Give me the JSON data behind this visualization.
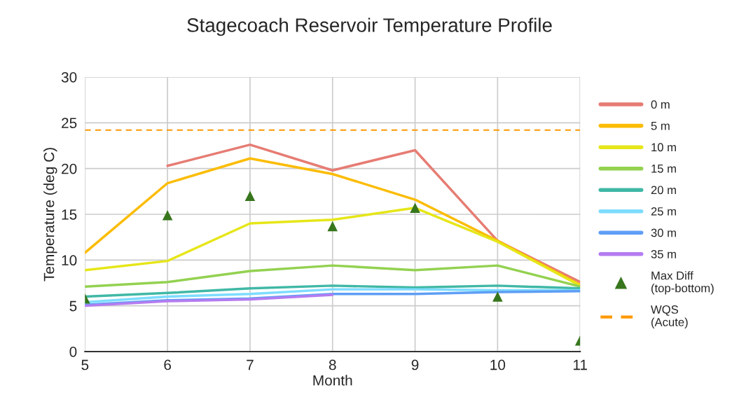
{
  "chart_data": {
    "type": "line",
    "title": "Stagecoach Reservoir Temperature Profile",
    "xlabel": "Month",
    "ylabel": "Temperature (deg C)",
    "x": [
      5,
      6,
      7,
      8,
      9,
      10,
      11
    ],
    "series": [
      {
        "name": "0 m",
        "color": "#e67c73",
        "values": [
          null,
          20.3,
          22.6,
          19.8,
          22.0,
          12.1,
          7.6
        ]
      },
      {
        "name": "5 m",
        "color": "#fbbc04",
        "values": [
          10.8,
          18.4,
          21.1,
          19.4,
          16.6,
          12.1,
          7.3
        ]
      },
      {
        "name": "10 m",
        "color": "#e6e619",
        "values": [
          8.9,
          9.9,
          14.0,
          14.4,
          15.7,
          12.0,
          7.2
        ]
      },
      {
        "name": "15 m",
        "color": "#93d150",
        "values": [
          7.1,
          7.6,
          8.8,
          9.4,
          8.9,
          9.4,
          7.1
        ]
      },
      {
        "name": "20 m",
        "color": "#40b8a6",
        "values": [
          6.0,
          6.4,
          6.9,
          7.2,
          7.0,
          7.2,
          6.9
        ]
      },
      {
        "name": "25 m",
        "color": "#7ddcff",
        "values": [
          5.4,
          6.0,
          6.3,
          6.8,
          6.8,
          6.7,
          6.7
        ]
      },
      {
        "name": "30 m",
        "color": "#5e9ef5",
        "values": [
          5.1,
          5.6,
          5.8,
          6.3,
          6.3,
          6.5,
          6.6
        ]
      },
      {
        "name": "35 m",
        "color": "#b57cf0",
        "values": [
          5.0,
          5.5,
          5.7,
          6.2,
          null,
          null,
          null
        ]
      },
      {
        "name": "Max Diff\n(top-bottom)",
        "type": "scatter",
        "marker": "triangle",
        "color": "#38761d",
        "values": [
          5.8,
          14.9,
          17.0,
          13.7,
          15.7,
          6.0,
          1.2
        ]
      }
    ],
    "ref_lines": [
      {
        "axis": "y",
        "value": 24.2,
        "label": "WQS\n(Acute)",
        "color": "#ff9900",
        "line_style": "dashed"
      }
    ],
    "xlim": [
      5,
      11
    ],
    "xticks": [
      5,
      6,
      7,
      8,
      9,
      10,
      11
    ],
    "ylim": [
      0,
      30
    ],
    "yticks": [
      0,
      5,
      10,
      15,
      20,
      25,
      30
    ],
    "grid": true,
    "legend": "right"
  }
}
